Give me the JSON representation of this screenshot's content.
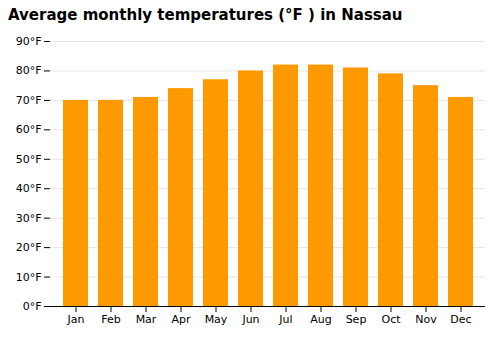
{
  "chart_data": {
    "type": "bar",
    "title": "Average monthly temperatures (°F ) in Nassau",
    "categories": [
      "Jan",
      "Feb",
      "Mar",
      "Apr",
      "May",
      "Jun",
      "Jul",
      "Aug",
      "Sep",
      "Oct",
      "Nov",
      "Dec"
    ],
    "values": [
      70,
      70,
      71,
      74,
      77,
      80,
      82,
      82,
      81,
      79,
      75,
      71
    ],
    "color": "#FF9900",
    "ylim": [
      0,
      90
    ],
    "yticks": [
      {
        "value": 0,
        "label": "0°F"
      },
      {
        "value": 10,
        "label": "10°F"
      },
      {
        "value": 20,
        "label": "20°F"
      },
      {
        "value": 30,
        "label": "30°F"
      },
      {
        "value": 40,
        "label": "40°F"
      },
      {
        "value": 50,
        "label": "50°F"
      },
      {
        "value": 60,
        "label": "60°F"
      },
      {
        "value": 70,
        "label": "70°F"
      },
      {
        "value": 80,
        "label": "80°F"
      },
      {
        "value": 90,
        "label": "90°F"
      }
    ],
    "grid": true
  }
}
